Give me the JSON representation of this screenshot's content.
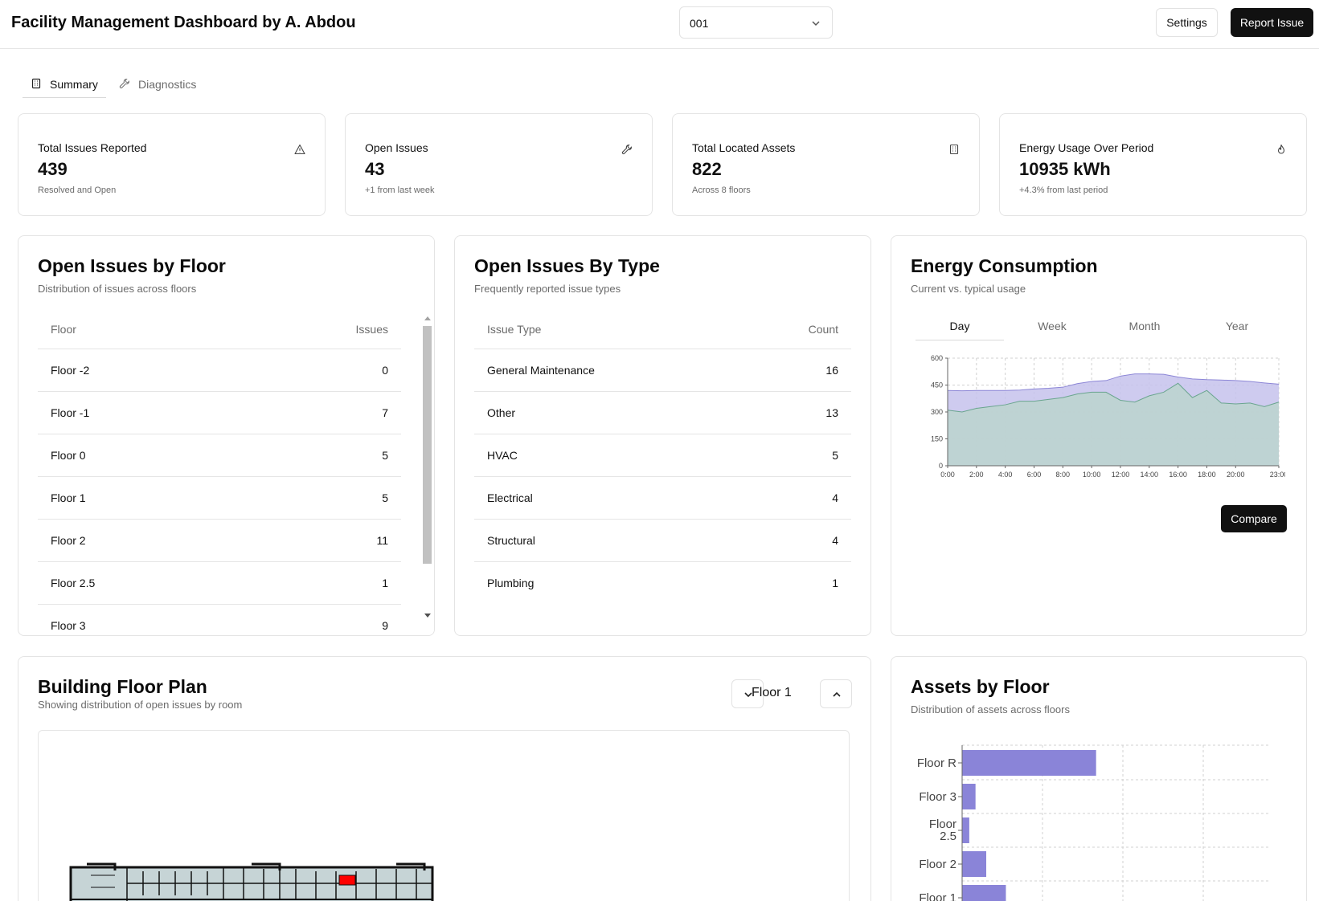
{
  "header": {
    "title": "Facility Management Dashboard by A. Abdou",
    "building_select": "001",
    "settings_label": "Settings",
    "report_label": "Report Issue"
  },
  "tabs": [
    {
      "label": "Summary",
      "active": true
    },
    {
      "label": "Diagnostics",
      "active": false
    }
  ],
  "stats": [
    {
      "label": "Total Issues Reported",
      "value": "439",
      "sub": "Resolved and Open",
      "icon": "warning-icon"
    },
    {
      "label": "Open Issues",
      "value": "43",
      "sub": "+1 from last week",
      "icon": "wrench-icon"
    },
    {
      "label": "Total Located Assets",
      "value": "822",
      "sub": "Across 8 floors",
      "icon": "building-icon"
    },
    {
      "label": "Energy Usage Over Period",
      "value": "10935 kWh",
      "sub": "+4.3% from last period",
      "icon": "flame-icon"
    }
  ],
  "issues_by_floor": {
    "title": "Open Issues by Floor",
    "subtitle": "Distribution of issues across floors",
    "columns": [
      "Floor",
      "Issues"
    ],
    "rows": [
      {
        "floor": "Floor -2",
        "issues": "0"
      },
      {
        "floor": "Floor -1",
        "issues": "7"
      },
      {
        "floor": "Floor 0",
        "issues": "5"
      },
      {
        "floor": "Floor 1",
        "issues": "5"
      },
      {
        "floor": "Floor 2",
        "issues": "11"
      },
      {
        "floor": "Floor 2.5",
        "issues": "1"
      },
      {
        "floor": "Floor 3",
        "issues": "9"
      }
    ]
  },
  "issues_by_type": {
    "title": "Open Issues By Type",
    "subtitle": "Frequently reported issue types",
    "columns": [
      "Issue Type",
      "Count"
    ],
    "rows": [
      {
        "type": "General Maintenance",
        "count": "16"
      },
      {
        "type": "Other",
        "count": "13"
      },
      {
        "type": "HVAC",
        "count": "5"
      },
      {
        "type": "Electrical",
        "count": "4"
      },
      {
        "type": "Structural",
        "count": "4"
      },
      {
        "type": "Plumbing",
        "count": "1"
      }
    ]
  },
  "energy": {
    "title": "Energy Consumption",
    "subtitle": "Current vs. typical usage",
    "tabs": [
      "Day",
      "Week",
      "Month",
      "Year"
    ],
    "active_tab": "Day",
    "compare_label": "Compare"
  },
  "floor_plan": {
    "title": "Building Floor Plan",
    "subtitle": "Showing distribution of open issues by room",
    "floor": "Floor 1"
  },
  "assets": {
    "title": "Assets by Floor",
    "subtitle": "Distribution of assets across floors"
  },
  "colors": {
    "typical": "#c5c2ec",
    "current": "#bdd4cf",
    "bar": "#8a84d8",
    "issue_room": "#ff0000"
  },
  "chart_data": [
    {
      "type": "area",
      "x": [
        "0:00",
        "1:00",
        "2:00",
        "3:00",
        "4:00",
        "5:00",
        "6:00",
        "7:00",
        "8:00",
        "9:00",
        "10:00",
        "11:00",
        "12:00",
        "13:00",
        "14:00",
        "15:00",
        "16:00",
        "17:00",
        "18:00",
        "19:00",
        "20:00",
        "21:00",
        "22:00",
        "23:00"
      ],
      "xticks": [
        "0:00",
        "2:00",
        "4:00",
        "6:00",
        "8:00",
        "10:00",
        "12:00",
        "14:00",
        "16:00",
        "18:00",
        "20:00",
        "23:00"
      ],
      "series": [
        {
          "values": [
            420,
            418,
            420,
            420,
            420,
            422,
            428,
            432,
            438,
            458,
            470,
            475,
            500,
            512,
            512,
            510,
            495,
            484,
            480,
            478,
            475,
            470,
            462,
            455
          ]
        },
        {
          "values": [
            310,
            300,
            320,
            330,
            340,
            360,
            360,
            370,
            380,
            400,
            410,
            410,
            365,
            355,
            390,
            410,
            460,
            380,
            420,
            350,
            345,
            350,
            330,
            355
          ]
        }
      ],
      "ylim": [
        0,
        600
      ],
      "yticks": [
        0,
        150,
        300,
        450,
        600
      ],
      "grid": true
    },
    {
      "type": "bar",
      "orientation": "horizontal",
      "categories": [
        "Floor R",
        "Floor 3",
        "Floor 2.5",
        "Floor 2",
        "Floor 1"
      ],
      "values": [
        150,
        15,
        8,
        27,
        49
      ],
      "xlim": [
        0,
        360
      ],
      "grid": true
    }
  ]
}
